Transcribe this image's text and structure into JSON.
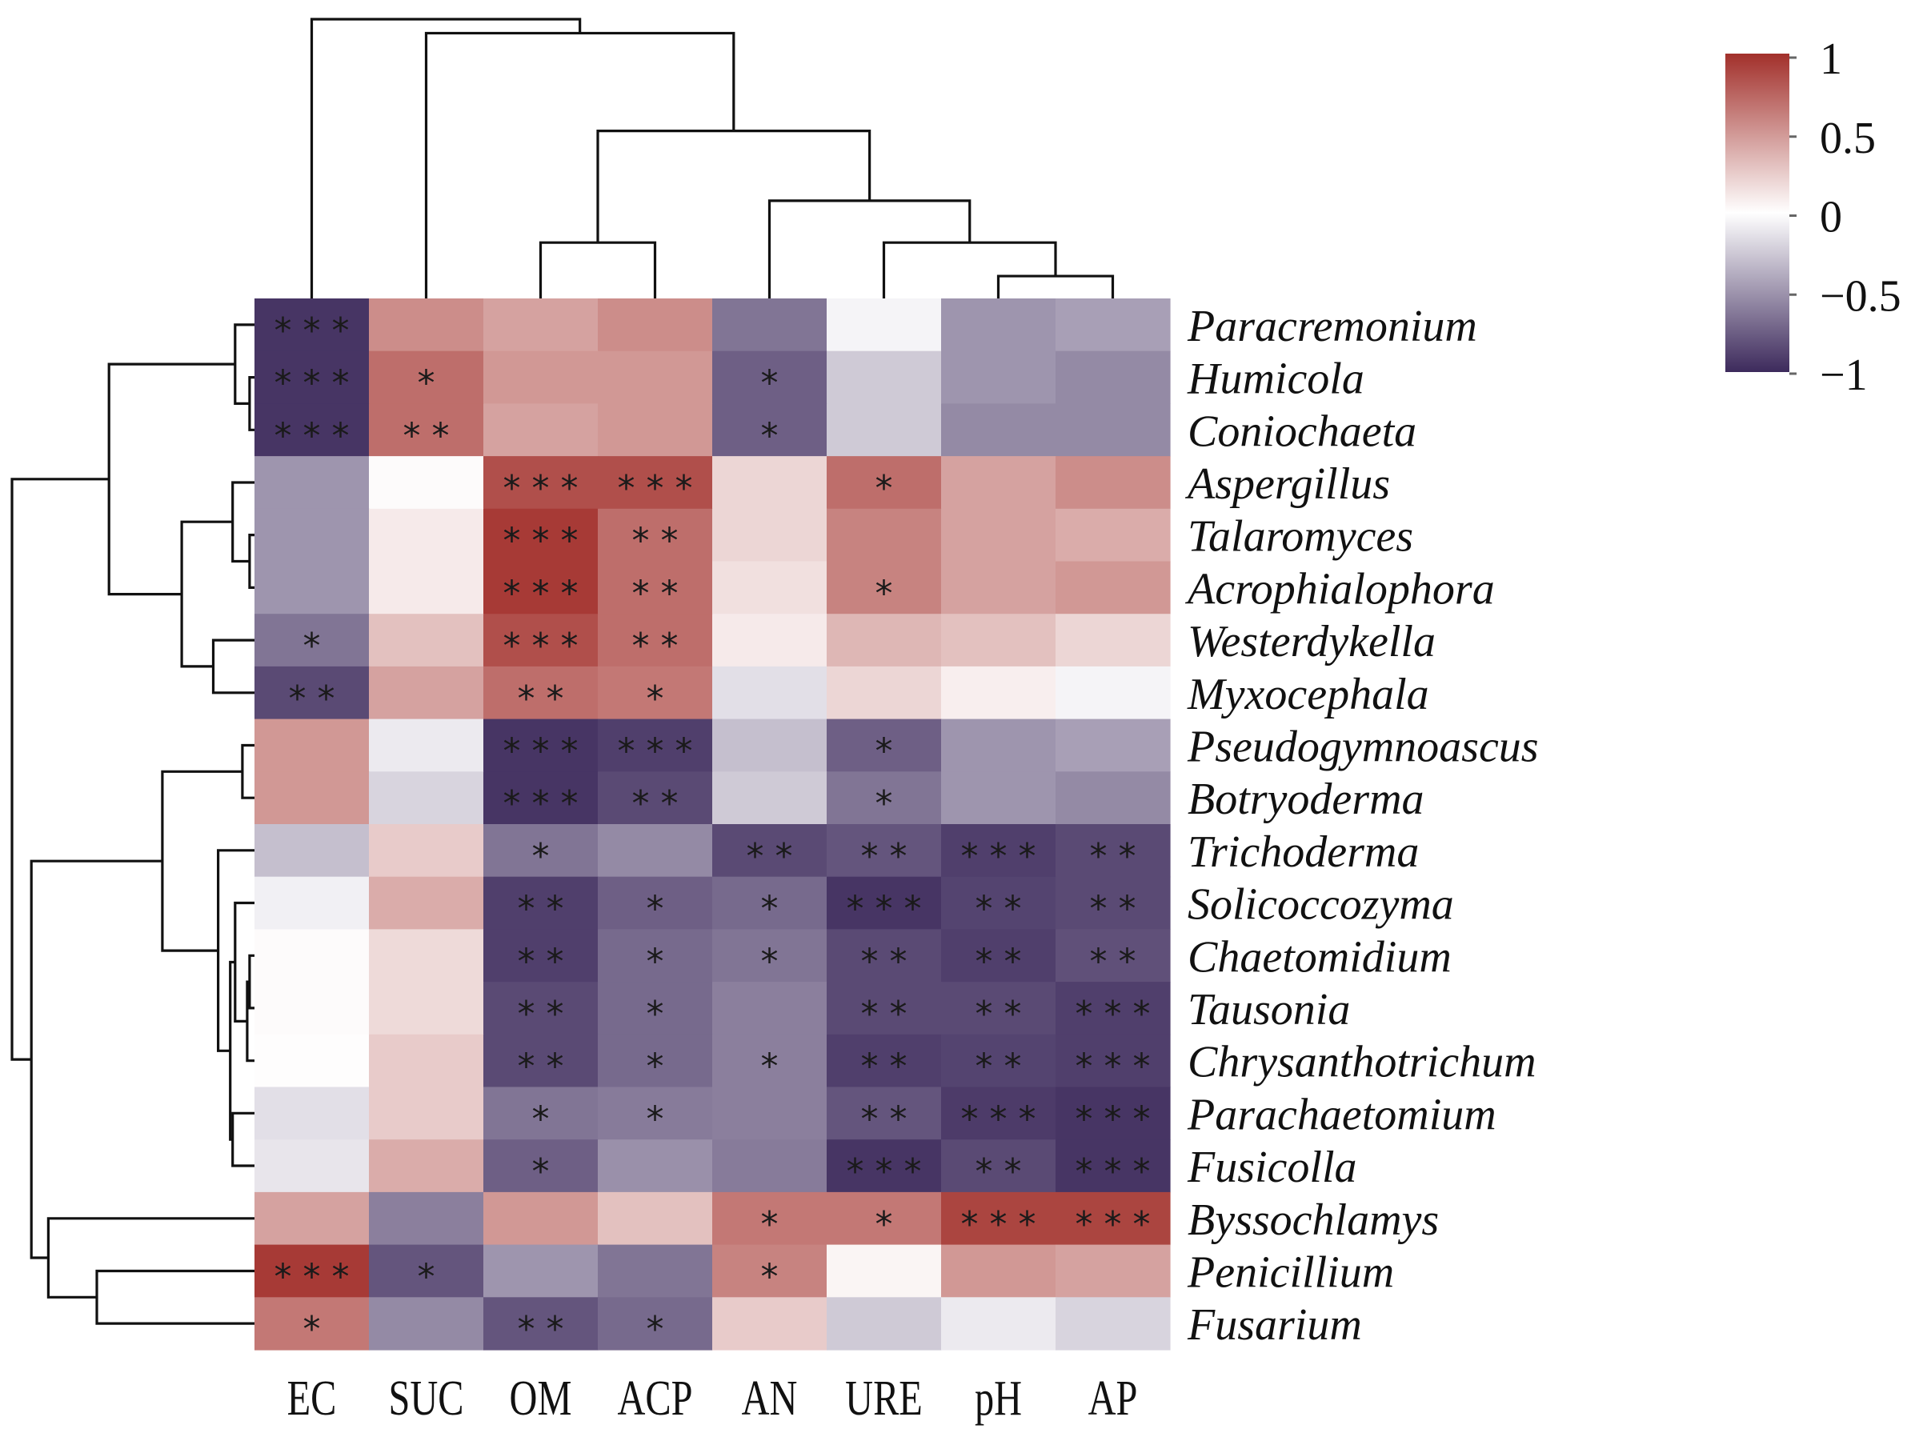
{
  "chart_data": {
    "type": "heatmap",
    "title": "",
    "xlabel": "",
    "ylabel": "",
    "columns": [
      "EC",
      "SUC",
      "OM",
      "ACP",
      "AN",
      "URE",
      "pH",
      "AP"
    ],
    "rows": [
      "Paracremonium",
      "Humicola",
      "Coniochaeta",
      "Aspergillus",
      "Talaromyces",
      "Acrophialophora",
      "Westerdykella",
      "Myxocephala",
      "Pseudogymnoascus",
      "Botryoderma",
      "Trichoderma",
      "Solicoccozyma",
      "Chaetomidium",
      "Tausonia",
      "Chrysanthotrichum",
      "Parachaetomium",
      "Fusicolla",
      "Byssochlamys",
      "Penicillium",
      "Fusarium"
    ],
    "values": [
      [
        -0.95,
        0.55,
        0.45,
        0.55,
        -0.65,
        -0.05,
        -0.5,
        -0.45
      ],
      [
        -0.95,
        0.7,
        0.5,
        0.5,
        -0.75,
        -0.25,
        -0.5,
        -0.55
      ],
      [
        -0.95,
        0.7,
        0.45,
        0.5,
        -0.75,
        -0.25,
        -0.55,
        -0.55
      ],
      [
        -0.5,
        0.02,
        0.85,
        0.85,
        0.2,
        0.7,
        0.45,
        0.55
      ],
      [
        -0.5,
        0.1,
        0.95,
        0.7,
        0.2,
        0.6,
        0.45,
        0.4
      ],
      [
        -0.5,
        0.1,
        0.95,
        0.7,
        0.15,
        0.6,
        0.45,
        0.5
      ],
      [
        -0.65,
        0.3,
        0.85,
        0.7,
        0.1,
        0.35,
        0.3,
        0.2
      ],
      [
        -0.85,
        0.45,
        0.7,
        0.65,
        -0.15,
        0.2,
        0.08,
        -0.05
      ],
      [
        0.5,
        -0.1,
        -0.95,
        -0.9,
        -0.3,
        -0.75,
        -0.5,
        -0.45
      ],
      [
        0.5,
        -0.2,
        -0.95,
        -0.85,
        -0.25,
        -0.65,
        -0.5,
        -0.55
      ],
      [
        -0.3,
        0.25,
        -0.65,
        -0.55,
        -0.85,
        -0.8,
        -0.9,
        -0.85
      ],
      [
        -0.07,
        0.4,
        -0.9,
        -0.75,
        -0.7,
        -0.95,
        -0.88,
        -0.85
      ],
      [
        0.02,
        0.18,
        -0.9,
        -0.7,
        -0.65,
        -0.85,
        -0.9,
        -0.82
      ],
      [
        0.02,
        0.18,
        -0.85,
        -0.7,
        -0.6,
        -0.85,
        -0.85,
        -0.9
      ],
      [
        0.01,
        0.25,
        -0.85,
        -0.7,
        -0.6,
        -0.9,
        -0.88,
        -0.9
      ],
      [
        -0.15,
        0.25,
        -0.65,
        -0.62,
        -0.6,
        -0.8,
        -0.92,
        -0.95
      ],
      [
        -0.12,
        0.4,
        -0.75,
        -0.52,
        -0.62,
        -0.95,
        -0.85,
        -0.95
      ],
      [
        0.45,
        -0.6,
        0.5,
        0.3,
        0.65,
        0.65,
        0.9,
        0.9
      ],
      [
        0.95,
        -0.8,
        -0.5,
        -0.65,
        0.6,
        0.05,
        0.5,
        0.45
      ],
      [
        0.65,
        -0.55,
        -0.8,
        -0.7,
        0.25,
        -0.25,
        -0.1,
        -0.2
      ]
    ],
    "significance": [
      [
        "***",
        "",
        "",
        "",
        "",
        "",
        "",
        ""
      ],
      [
        "***",
        "*",
        "",
        "",
        "*",
        "",
        "",
        ""
      ],
      [
        "***",
        "**",
        "",
        "",
        "*",
        "",
        "",
        ""
      ],
      [
        "",
        "",
        "***",
        "***",
        "",
        "*",
        "",
        ""
      ],
      [
        "",
        "",
        "***",
        "**",
        "",
        "",
        "",
        ""
      ],
      [
        "",
        "",
        "***",
        "**",
        "",
        "*",
        "",
        ""
      ],
      [
        "*",
        "",
        "***",
        "**",
        "",
        "",
        "",
        ""
      ],
      [
        "**",
        "",
        "**",
        "*",
        "",
        "",
        "",
        ""
      ],
      [
        "",
        "",
        "***",
        "***",
        "",
        "*",
        "",
        ""
      ],
      [
        "",
        "",
        "***",
        "**",
        "",
        "*",
        "",
        ""
      ],
      [
        "",
        "",
        "*",
        "",
        "**",
        "**",
        "***",
        "**"
      ],
      [
        "",
        "",
        "**",
        "*",
        "*",
        "***",
        "**",
        "**"
      ],
      [
        "",
        "",
        "**",
        "*",
        "*",
        "**",
        "**",
        "**"
      ],
      [
        "",
        "",
        "**",
        "*",
        "",
        "**",
        "**",
        "***"
      ],
      [
        "",
        "",
        "**",
        "*",
        "*",
        "**",
        "**",
        "***"
      ],
      [
        "",
        "",
        "*",
        "*",
        "",
        "**",
        "***",
        "***"
      ],
      [
        "",
        "",
        "*",
        "",
        "",
        "***",
        "**",
        "***"
      ],
      [
        "",
        "",
        "",
        "",
        "*",
        "*",
        "***",
        "***"
      ],
      [
        "***",
        "*",
        "",
        "",
        "*",
        "",
        "",
        ""
      ],
      [
        "*",
        "",
        "**",
        "*",
        "",
        "",
        "",
        ""
      ]
    ],
    "colorbar": {
      "ticks": [
        1,
        0.5,
        0,
        -0.5,
        -1
      ],
      "tick_labels": [
        "1",
        "0.5",
        "0",
        "−0.5",
        "−1"
      ],
      "range": [
        -1,
        1
      ],
      "colors": {
        "high": "#a2302b",
        "mid": "#ffffff",
        "low": "#3d2a5c"
      }
    },
    "col_dendrogram": [
      {
        "a": 6,
        "b": 7,
        "h": 0.08
      },
      {
        "a": 5,
        "b": "n0",
        "h": 0.2
      },
      {
        "a": 4,
        "b": "n1",
        "h": 0.35
      },
      {
        "a": 2,
        "b": 3,
        "h": 0.2
      },
      {
        "a": "n3",
        "b": "n2",
        "h": 0.6
      },
      {
        "a": 1,
        "b": "n4",
        "h": 0.95
      },
      {
        "a": 0,
        "b": "n5",
        "h": 1.0
      }
    ],
    "row_dendrogram": [
      {
        "a": 1,
        "b": 2,
        "h": 0.02
      },
      {
        "a": 0,
        "b": "n0",
        "h": 0.08
      },
      {
        "a": 4,
        "b": 5,
        "h": 0.02
      },
      {
        "a": 3,
        "b": "n2",
        "h": 0.09
      },
      {
        "a": 6,
        "b": 7,
        "h": 0.17
      },
      {
        "a": "n3",
        "b": "n4",
        "h": 0.3
      },
      {
        "a": "n1",
        "b": "n5",
        "h": 0.6
      },
      {
        "a": 8,
        "b": 9,
        "h": 0.05
      },
      {
        "a": 12,
        "b": 13,
        "h": 0.02
      },
      {
        "a": "n8",
        "b": 14,
        "h": 0.03
      },
      {
        "a": 11,
        "b": "n9",
        "h": 0.08
      },
      {
        "a": 15,
        "b": 16,
        "h": 0.09
      },
      {
        "a": "n10",
        "b": "n11",
        "h": 0.1
      },
      {
        "a": 10,
        "b": "n12",
        "h": 0.15
      },
      {
        "a": "n7",
        "b": "n13",
        "h": 0.38
      },
      {
        "a": 18,
        "b": 19,
        "h": 0.65
      },
      {
        "a": 17,
        "b": "n15",
        "h": 0.85
      },
      {
        "a": "n14",
        "b": "n16",
        "h": 0.92
      },
      {
        "a": "n6",
        "b": "n17",
        "h": 1.0
      }
    ]
  }
}
